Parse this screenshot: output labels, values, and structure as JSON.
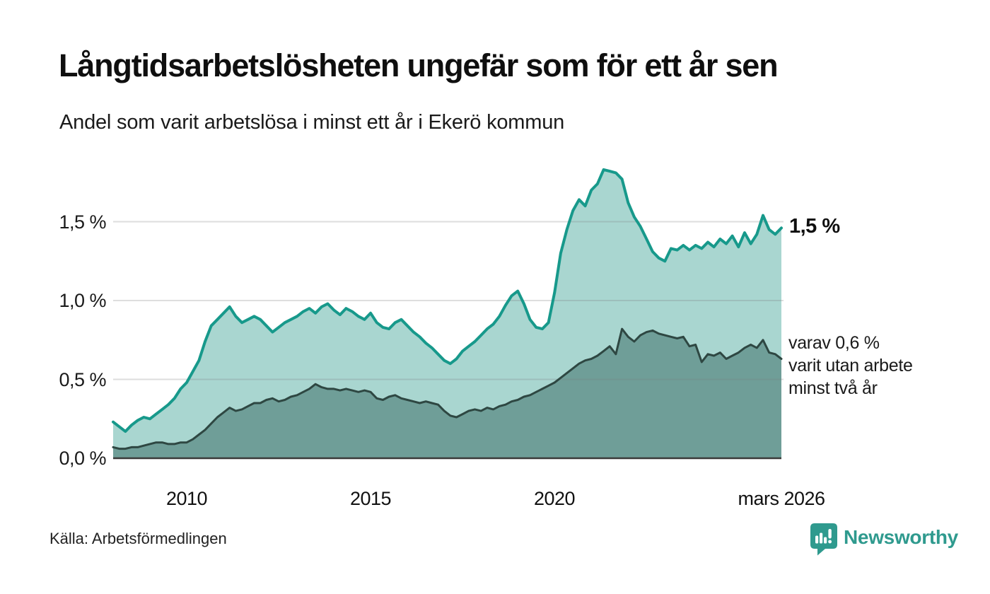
{
  "header": {
    "title": "Långtidsarbetslösheten ungefär som för ett år sen",
    "subtitle": "Andel som varit arbetslösa i minst ett år i Ekerö kommun"
  },
  "chart_data": {
    "type": "area",
    "title": "Långtidsarbetslösheten ungefär som för ett år sen",
    "subtitle": "Andel som varit arbetslösa i minst ett år i Ekerö kommun",
    "unit": "%",
    "x_domain": [
      2008.0,
      2026.167
    ],
    "x_interval_months": 2,
    "ylim": [
      0,
      1.9
    ],
    "grid": true,
    "y_ticks": [
      {
        "value": 0.0,
        "label": "0,0 %"
      },
      {
        "value": 0.5,
        "label": "0,5 %"
      },
      {
        "value": 1.0,
        "label": "1,0 %"
      },
      {
        "value": 1.5,
        "label": "1,5 %"
      }
    ],
    "x_ticks": [
      {
        "value": 2010,
        "label": "2010"
      },
      {
        "value": 2015,
        "label": "2015"
      },
      {
        "value": 2020,
        "label": "2020"
      },
      {
        "value": 2026.167,
        "label": "mars 2026"
      }
    ],
    "series": [
      {
        "name": "Andel som varit arbetslösa minst ett år",
        "line_color": "#17998b",
        "fill_color": "#a9d6d0",
        "line_width": 4,
        "values": [
          0.23,
          0.2,
          0.17,
          0.21,
          0.24,
          0.26,
          0.25,
          0.28,
          0.31,
          0.34,
          0.38,
          0.44,
          0.48,
          0.55,
          0.62,
          0.74,
          0.84,
          0.88,
          0.92,
          0.96,
          0.9,
          0.86,
          0.88,
          0.9,
          0.88,
          0.84,
          0.8,
          0.83,
          0.86,
          0.88,
          0.9,
          0.93,
          0.95,
          0.92,
          0.96,
          0.98,
          0.94,
          0.91,
          0.95,
          0.93,
          0.9,
          0.88,
          0.92,
          0.86,
          0.83,
          0.82,
          0.86,
          0.88,
          0.84,
          0.8,
          0.77,
          0.73,
          0.7,
          0.66,
          0.62,
          0.6,
          0.63,
          0.68,
          0.71,
          0.74,
          0.78,
          0.82,
          0.85,
          0.9,
          0.97,
          1.03,
          1.06,
          0.98,
          0.88,
          0.83,
          0.82,
          0.86,
          1.05,
          1.3,
          1.45,
          1.57,
          1.64,
          1.6,
          1.7,
          1.74,
          1.83,
          1.82,
          1.81,
          1.77,
          1.62,
          1.53,
          1.47,
          1.39,
          1.31,
          1.27,
          1.25,
          1.33,
          1.32,
          1.35,
          1.32,
          1.35,
          1.33,
          1.37,
          1.34,
          1.39,
          1.36,
          1.41,
          1.34,
          1.43,
          1.36,
          1.42,
          1.54,
          1.45,
          1.42,
          1.46
        ]
      },
      {
        "name": "varav arbetslösa minst två år",
        "line_color": "#2e4742",
        "fill_color": "#6f9e98",
        "line_width": 3,
        "values": [
          0.07,
          0.06,
          0.06,
          0.07,
          0.07,
          0.08,
          0.09,
          0.1,
          0.1,
          0.09,
          0.09,
          0.1,
          0.1,
          0.12,
          0.15,
          0.18,
          0.22,
          0.26,
          0.29,
          0.32,
          0.3,
          0.31,
          0.33,
          0.35,
          0.35,
          0.37,
          0.38,
          0.36,
          0.37,
          0.39,
          0.4,
          0.42,
          0.44,
          0.47,
          0.45,
          0.44,
          0.44,
          0.43,
          0.44,
          0.43,
          0.42,
          0.43,
          0.42,
          0.38,
          0.37,
          0.39,
          0.4,
          0.38,
          0.37,
          0.36,
          0.35,
          0.36,
          0.35,
          0.34,
          0.3,
          0.27,
          0.26,
          0.28,
          0.3,
          0.31,
          0.3,
          0.32,
          0.31,
          0.33,
          0.34,
          0.36,
          0.37,
          0.39,
          0.4,
          0.42,
          0.44,
          0.46,
          0.48,
          0.51,
          0.54,
          0.57,
          0.6,
          0.62,
          0.63,
          0.65,
          0.68,
          0.71,
          0.66,
          0.82,
          0.77,
          0.74,
          0.78,
          0.8,
          0.81,
          0.79,
          0.78,
          0.77,
          0.76,
          0.77,
          0.71,
          0.72,
          0.61,
          0.66,
          0.65,
          0.67,
          0.63,
          0.65,
          0.67,
          0.7,
          0.72,
          0.7,
          0.75,
          0.67,
          0.66,
          0.63
        ]
      }
    ],
    "end_labels": {
      "primary": "1,5 %",
      "secondary": "varav 0,6 %\nvarit utan arbete\nminst två år"
    },
    "colors": {
      "grid": "#dcdcdc",
      "baseline": "#3b3b3b"
    },
    "legend_position": "end-of-line-labels"
  },
  "footer": {
    "source": "Källa: Arbetsförmedlingen",
    "brand": "Newsworthy",
    "brand_color": "#2f9a8e"
  }
}
